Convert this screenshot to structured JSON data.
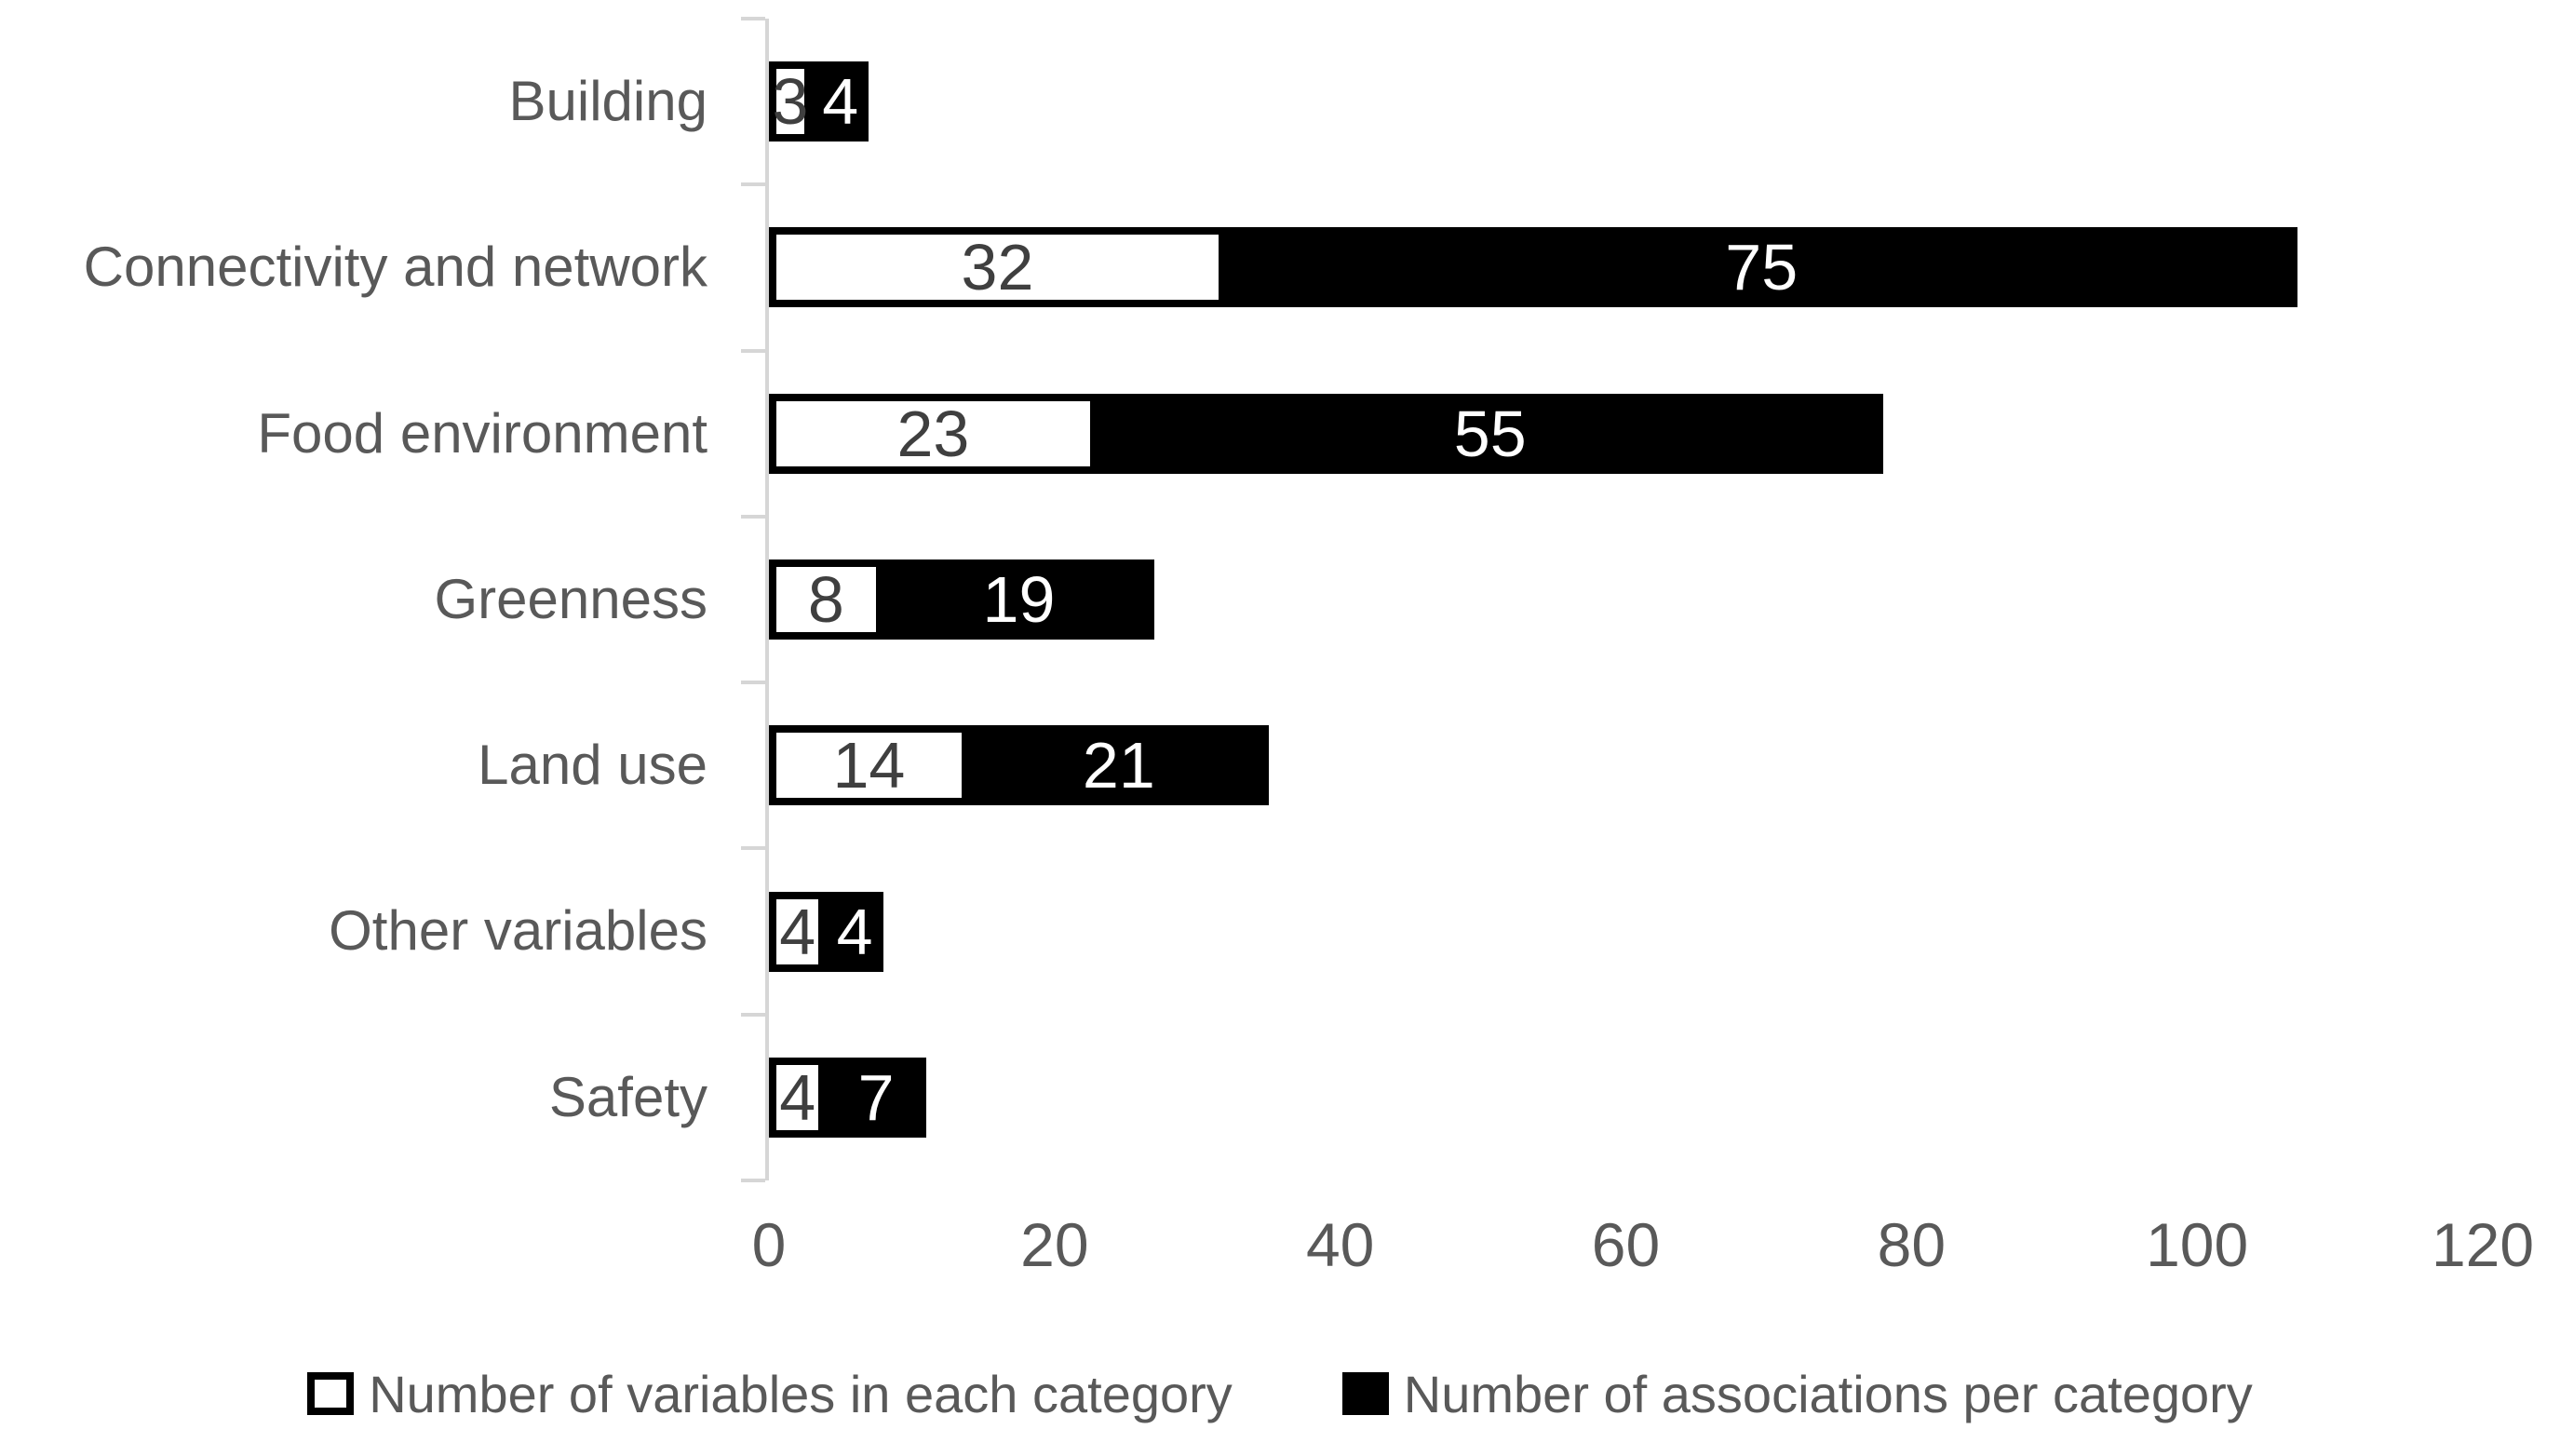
{
  "chart_data": {
    "type": "bar",
    "orientation": "horizontal",
    "stacked": true,
    "title": "",
    "xlabel": "",
    "ylabel": "",
    "categories": [
      "Building",
      "Connectivity and network",
      "Food environment",
      "Greenness",
      "Land use",
      "Other variables",
      "Safety"
    ],
    "series": [
      {
        "name": "Number of variables in each category",
        "fill": "#ffffff",
        "values": [
          3,
          32,
          23,
          8,
          14,
          4,
          4
        ]
      },
      {
        "name": "Number of associations per category",
        "fill": "#000000",
        "values": [
          4,
          75,
          55,
          19,
          21,
          4,
          7
        ]
      }
    ],
    "totals": [
      7,
      107,
      78,
      27,
      35,
      8,
      11
    ],
    "xaxis": {
      "min": 0,
      "max": 120,
      "ticks": [
        0,
        20,
        40,
        60,
        80,
        100,
        120
      ]
    },
    "gridlines": false,
    "legend_position": "bottom",
    "colors": {
      "label_text": "#595959",
      "tick_text": "#595959",
      "axis_line": "#d6d6d6",
      "bar_border": "#000000",
      "value_label_on_white": "#3f3f3f",
      "value_label_on_black": "#ffffff",
      "background": "#ffffff"
    }
  }
}
